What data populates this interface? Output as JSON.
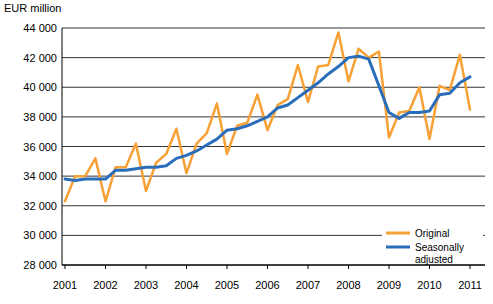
{
  "chart_data": {
    "type": "line",
    "y_axis_label": "EUR million",
    "categories": [
      "2001",
      null,
      null,
      null,
      "2002",
      null,
      null,
      null,
      "2003",
      null,
      null,
      null,
      "2004",
      null,
      null,
      null,
      "2005",
      null,
      null,
      null,
      "2006",
      null,
      null,
      null,
      "2007",
      null,
      null,
      null,
      "2008",
      null,
      null,
      null,
      "2009",
      null,
      null,
      null,
      "2010",
      null,
      null,
      null,
      "2011"
    ],
    "series": [
      {
        "name": "Original",
        "color": "#f7a035",
        "values": [
          32300,
          34000,
          34000,
          35200,
          32300,
          34600,
          34600,
          36200,
          33000,
          34900,
          35500,
          37200,
          34200,
          36200,
          36900,
          38900,
          35500,
          37400,
          37600,
          39500,
          37100,
          38800,
          39200,
          41500,
          39000,
          41400,
          41500,
          43700,
          40400,
          42600,
          42000,
          42400,
          36600,
          38300,
          38400,
          40000,
          36500,
          40100,
          39800,
          42200,
          38500
        ]
      },
      {
        "name": "Seasonally adjusted",
        "color": "#2a6ebb",
        "values": [
          33800,
          33700,
          33800,
          33800,
          33800,
          34400,
          34400,
          34500,
          34600,
          34600,
          34700,
          35200,
          35400,
          35700,
          36100,
          36500,
          37100,
          37200,
          37400,
          37700,
          38000,
          38600,
          38800,
          39300,
          39800,
          40300,
          40900,
          41400,
          42000,
          42100,
          41900,
          40100,
          38300,
          37900,
          38300,
          38300,
          38400,
          39500,
          39600,
          40300,
          40700
        ]
      }
    ],
    "ylim": [
      28000,
      44000
    ],
    "yticks": [
      {
        "value": 28000,
        "label": "28 000"
      },
      {
        "value": 30000,
        "label": "30 000"
      },
      {
        "value": 32000,
        "label": "32 000"
      },
      {
        "value": 34000,
        "label": "34 000"
      },
      {
        "value": 36000,
        "label": "36 000"
      },
      {
        "value": 38000,
        "label": "38 000"
      },
      {
        "value": 40000,
        "label": "40 000"
      },
      {
        "value": 42000,
        "label": "42 000"
      },
      {
        "value": 44000,
        "label": "44 000"
      }
    ],
    "grid": true,
    "legend": "lower right"
  }
}
